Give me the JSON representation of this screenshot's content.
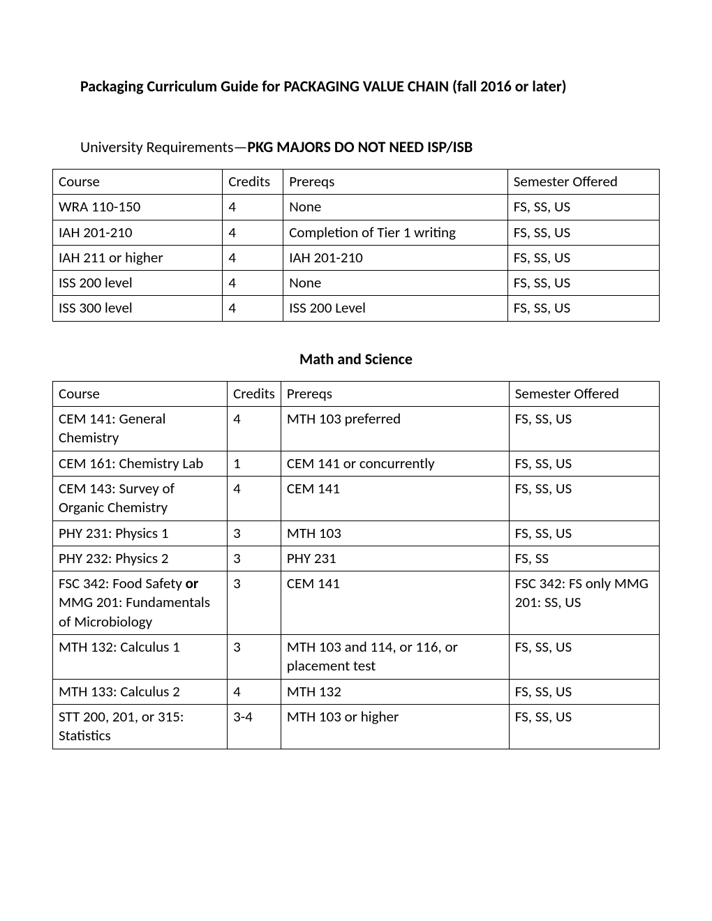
{
  "page_title": "Packaging Curriculum Guide for PACKAGING VALUE CHAIN (fall 2016 or later)",
  "section1": {
    "heading_normal": "University Requirements—",
    "heading_bold": "PKG MAJORS DO NOT NEED ISP/ISB",
    "headers": [
      "Course",
      "Credits",
      "Prereqs",
      "Semester Offered"
    ],
    "rows": [
      [
        "WRA 110-150",
        "4",
        "None",
        "FS, SS, US"
      ],
      [
        "IAH 201-210",
        "4",
        "Completion of Tier 1 writing",
        "FS, SS, US"
      ],
      [
        "IAH 211 or higher",
        "4",
        "IAH 201-210",
        "FS, SS, US"
      ],
      [
        "ISS 200 level",
        "4",
        "None",
        "FS, SS, US"
      ],
      [
        "ISS 300 level",
        "4",
        "ISS 200 Level",
        "FS, SS, US"
      ]
    ]
  },
  "section2": {
    "heading": "Math and Science",
    "headers": [
      "Course",
      "Credits",
      "Prereqs",
      "Semester Offered"
    ],
    "rows": [
      {
        "course": "CEM 141: General Chemistry",
        "credits": "4",
        "prereqs": "MTH 103 preferred",
        "semester": "FS, SS, US"
      },
      {
        "course": "CEM 161: Chemistry Lab",
        "credits": "1",
        "prereqs": "CEM 141 or concurrently",
        "semester": "FS, SS, US"
      },
      {
        "course": "CEM 143: Survey of Organic Chemistry",
        "credits": "4",
        "prereqs": "CEM 141",
        "semester": "FS, SS, US"
      },
      {
        "course": "PHY 231: Physics 1",
        "credits": "3",
        "prereqs": "MTH 103",
        "semester": "FS, SS, US"
      },
      {
        "course": "PHY 232: Physics 2",
        "credits": "3",
        "prereqs": "PHY 231",
        "semester": "FS, SS"
      },
      {
        "course_part1": "FSC 342: Food Safety ",
        "course_bold": "or",
        "course_part2": " MMG 201: Fundamentals of Microbiology",
        "credits": "3",
        "prereqs": "CEM 141",
        "semester": "FSC 342: FS only MMG 201: SS, US",
        "has_bold": true
      },
      {
        "course": "MTH 132: Calculus 1",
        "credits": "3",
        "prereqs": "MTH 103 and 114, or 116, or placement test",
        "semester": "FS, SS, US"
      },
      {
        "course": "MTH 133: Calculus 2",
        "credits": "4",
        "prereqs": "MTH 132",
        "semester": "FS, SS, US"
      },
      {
        "course": "STT 200, 201, or 315: Statistics",
        "credits": "3-4",
        "prereqs": "MTH 103 or higher",
        "semester": "FS, SS, US"
      }
    ]
  }
}
